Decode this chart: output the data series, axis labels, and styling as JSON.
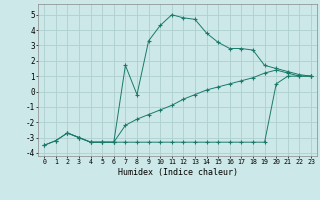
{
  "xlabel": "Humidex (Indice chaleur)",
  "bg_color": "#cde8e8",
  "line_color": "#1a7a6a",
  "grid_color": "#aed0d0",
  "xlim": [
    -0.5,
    23.5
  ],
  "ylim": [
    -4.2,
    5.7
  ],
  "xticks": [
    0,
    1,
    2,
    3,
    4,
    5,
    6,
    7,
    8,
    9,
    10,
    11,
    12,
    13,
    14,
    15,
    16,
    17,
    18,
    19,
    20,
    21,
    22,
    23
  ],
  "yticks": [
    -4,
    -3,
    -2,
    -1,
    0,
    1,
    2,
    3,
    4,
    5
  ],
  "series1_x": [
    0,
    1,
    2,
    3,
    4,
    5,
    6,
    7,
    8,
    9,
    10,
    11,
    12,
    13,
    14,
    15,
    16,
    17,
    18,
    19,
    20,
    21,
    22,
    23
  ],
  "series1_y": [
    -3.5,
    -3.2,
    -2.7,
    -3.0,
    -3.3,
    -3.3,
    -3.3,
    -3.3,
    -3.3,
    -3.3,
    -3.3,
    -3.3,
    -3.3,
    -3.3,
    -3.3,
    -3.3,
    -3.3,
    -3.3,
    -3.3,
    -3.3,
    0.5,
    1.0,
    1.0,
    1.0
  ],
  "series2_x": [
    0,
    1,
    2,
    3,
    4,
    5,
    6,
    7,
    8,
    9,
    10,
    11,
    12,
    13,
    14,
    15,
    16,
    17,
    18,
    19,
    20,
    21,
    22,
    23
  ],
  "series2_y": [
    -3.5,
    -3.2,
    -2.7,
    -3.0,
    -3.3,
    -3.3,
    -3.3,
    -2.2,
    -1.8,
    -1.5,
    -1.2,
    -0.9,
    -0.5,
    -0.2,
    0.1,
    0.3,
    0.5,
    0.7,
    0.9,
    1.2,
    1.4,
    1.2,
    1.0,
    1.0
  ],
  "series3_x": [
    2,
    3,
    4,
    5,
    6,
    7,
    8,
    9,
    10,
    11,
    12,
    13,
    14,
    15,
    16,
    17,
    18,
    19,
    20,
    21,
    22,
    23
  ],
  "series3_y": [
    -2.7,
    -3.0,
    -3.3,
    -3.3,
    -3.3,
    1.7,
    -0.2,
    3.3,
    4.3,
    5.0,
    4.8,
    4.7,
    3.8,
    3.2,
    2.8,
    2.8,
    2.7,
    1.7,
    1.5,
    1.3,
    1.1,
    1.0
  ]
}
